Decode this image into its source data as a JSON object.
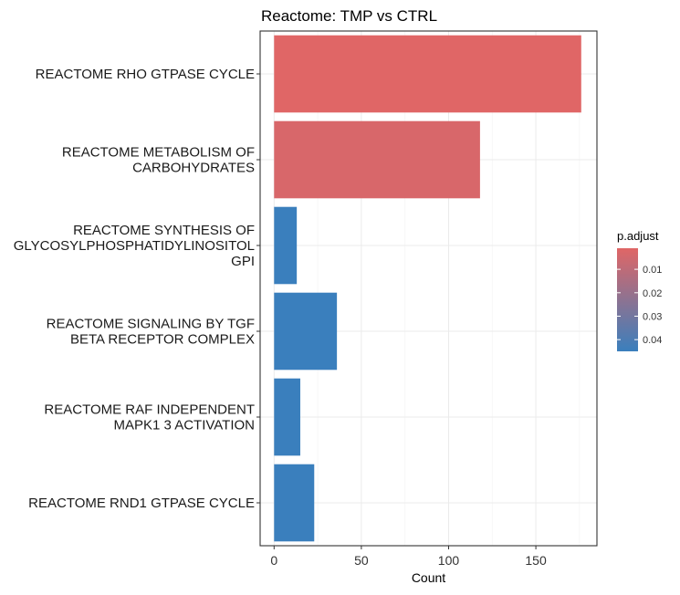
{
  "chart_data": {
    "type": "bar",
    "orientation": "horizontal",
    "title": "Reactome: TMP vs CTRL",
    "xlabel": "Count",
    "ylabel": "",
    "xlim": [
      -8,
      185
    ],
    "x_ticks": [
      0,
      50,
      100,
      150
    ],
    "categories": [
      [
        "REACTOME RHO GTPASE CYCLE"
      ],
      [
        "REACTOME METABOLISM OF",
        "CARBOHYDRATES"
      ],
      [
        "REACTOME SYNTHESIS OF",
        "GLYCOSYLPHOSPHATIDYLINOSITOL",
        "GPI"
      ],
      [
        "REACTOME SIGNALING BY TGF",
        "BETA RECEPTOR COMPLEX"
      ],
      [
        "REACTOME RAF INDEPENDENT",
        "MAPK1 3 ACTIVATION"
      ],
      [
        "REACTOME RND1 GTPASE CYCLE"
      ]
    ],
    "values": [
      176,
      118,
      13,
      36,
      15,
      23
    ],
    "p_adjust": [
      0.001,
      0.003,
      0.045,
      0.045,
      0.045,
      0.045
    ],
    "grid": true,
    "legend": {
      "title": "p.adjust",
      "position": "right",
      "ticks": [
        "0.01",
        "0.02",
        "0.03",
        "0.04"
      ],
      "tick_values": [
        0.01,
        0.02,
        0.03,
        0.04
      ],
      "range": [
        0.001,
        0.045
      ],
      "low_color": "#e06666",
      "high_color": "#3a7fbd"
    }
  }
}
